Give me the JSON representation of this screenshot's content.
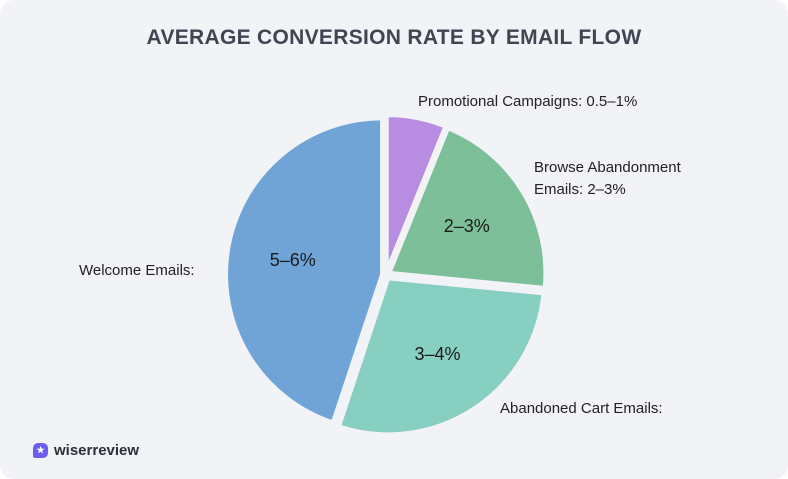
{
  "chart_data": {
    "type": "pie",
    "title": "AVERAGE CONVERSION RATE BY EMAIL FLOW",
    "slices": [
      {
        "name": "Promotional Campaigns",
        "label": "Promotional Campaigns: 0.5–1%",
        "range": "0.5–1%",
        "value": 0.75,
        "color": "#b88ce0",
        "show_inner": false
      },
      {
        "name": "Browse Abandonment Emails",
        "label_lines": [
          "Browse Abandonment",
          "Emails: 2–3%"
        ],
        "range": "2–3%",
        "value": 2.5,
        "color": "#7dbf98",
        "show_inner": true
      },
      {
        "name": "Abandoned Cart Emails",
        "label": "Abandoned Cart Emails:",
        "range": "3–4%",
        "value": 3.5,
        "color": "#87cfc1",
        "show_inner": true
      },
      {
        "name": "Welcome Emails",
        "label": "Welcome Emails:",
        "range": "5–6%",
        "value": 5.5,
        "color": "#70a4d7",
        "show_inner": true
      }
    ]
  },
  "brand": {
    "name": "wiserreview",
    "icon": "star-badge-icon"
  }
}
